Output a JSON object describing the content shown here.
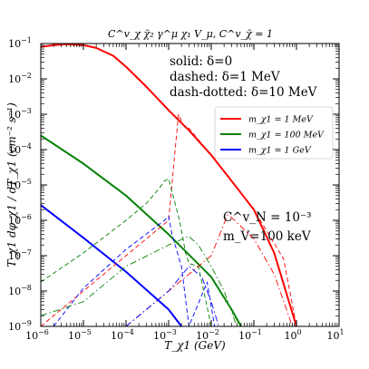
{
  "chart_data": {
    "type": "line",
    "title": "C^v_χ χ̄₂ γ^μ χ₁ V_μ,  C^v_χ̄ = 1",
    "xlabel": "T_χ1 (GeV)",
    "ylabel": "T_χ1 dφ_χ1 / dT_χ1 (cm⁻² s⁻¹)",
    "x_scale": "log",
    "y_scale": "log",
    "xlim": [
      1e-06,
      10
    ],
    "ylim": [
      1e-09,
      0.1
    ],
    "x_ticks": [
      {
        "b": "10",
        "e": "−6"
      },
      {
        "b": "10",
        "e": "−5"
      },
      {
        "b": "10",
        "e": "−4"
      },
      {
        "b": "10",
        "e": "−3"
      },
      {
        "b": "10",
        "e": "−2"
      },
      {
        "b": "10",
        "e": "−1"
      },
      {
        "b": "10",
        "e": "0"
      },
      {
        "b": "10",
        "e": "1"
      }
    ],
    "y_ticks": [
      {
        "b": "10",
        "e": "−9"
      },
      {
        "b": "10",
        "e": "−8"
      },
      {
        "b": "10",
        "e": "−7"
      },
      {
        "b": "10",
        "e": "−6"
      },
      {
        "b": "10",
        "e": "−5"
      },
      {
        "b": "10",
        "e": "−4"
      },
      {
        "b": "10",
        "e": "−3"
      },
      {
        "b": "10",
        "e": "−2"
      },
      {
        "b": "10",
        "e": "−1"
      }
    ],
    "annotations": {
      "style_key": [
        "solid: δ=0",
        "dashed: δ=1 MeV",
        "dash-dotted: δ=10 MeV"
      ],
      "params": [
        "C^v_N = 10⁻³",
        "m_V=100 keV"
      ]
    },
    "legend": {
      "placement": "center-right",
      "entries": [
        {
          "label": "m_χ1 = 1  MeV",
          "color": "#ff0000"
        },
        {
          "label": "m_χ1 = 100  MeV",
          "color": "#008000"
        },
        {
          "label": "m_χ1 = 1  GeV",
          "color": "#0000ff"
        }
      ]
    },
    "series": [
      {
        "mass": "1 MeV",
        "delta": "0",
        "color": "#ff0000",
        "style": "solid",
        "x": [
          1e-06,
          2e-06,
          4e-06,
          1e-05,
          2e-05,
          5e-05,
          0.0001,
          0.0003,
          0.001,
          0.003,
          0.01,
          0.03,
          0.1,
          0.3,
          1.0
        ],
        "y": [
          0.08,
          0.09,
          0.095,
          0.09,
          0.075,
          0.045,
          0.022,
          0.006,
          0.0013,
          0.00035,
          7e-05,
          1.3e-05,
          2e-06,
          1.2e-07,
          1e-09
        ]
      },
      {
        "mass": "100 MeV",
        "delta": "0",
        "color": "#008000",
        "style": "solid",
        "x": [
          1e-06,
          1e-05,
          0.0001,
          0.001,
          0.01,
          0.03,
          0.05
        ],
        "y": [
          0.00025,
          4e-05,
          5e-06,
          4e-07,
          2.5e-08,
          3e-09,
          1e-09
        ]
      },
      {
        "mass": "1 GeV",
        "delta": "0",
        "color": "#0000ff",
        "style": "solid",
        "x": [
          1e-06,
          1e-05,
          0.0001,
          0.001,
          0.002
        ],
        "y": [
          2.7e-06,
          3.2e-07,
          3.5e-08,
          3e-09,
          1e-09
        ]
      },
      {
        "mass": "1 MeV",
        "delta": "1 MeV",
        "color": "#ff0000",
        "style": "dashed",
        "x": [
          1e-06,
          1e-05,
          0.0001,
          0.001,
          0.0017,
          0.0022,
          0.003,
          0.01,
          0.1,
          0.5,
          1.0
        ],
        "y": [
          1e-09,
          1e-08,
          1e-07,
          1e-06,
          0.001,
          0.0005,
          0.0004,
          7e-05,
          2e-06,
          8e-08,
          1e-09
        ]
      },
      {
        "mass": "100 MeV",
        "delta": "1 MeV",
        "color": "#008000",
        "style": "dashed",
        "x": [
          1e-06,
          1e-05,
          0.0001,
          0.0003,
          0.0006,
          0.0008,
          0.001,
          0.0018,
          0.0025,
          0.003,
          0.005,
          0.01
        ],
        "y": [
          1.8e-08,
          1.2e-07,
          1e-06,
          3e-06,
          8e-06,
          1.3e-05,
          1.5e-05,
          1e-06,
          1.2e-07,
          6e-08,
          5e-08,
          1e-09
        ]
      },
      {
        "mass": "1 GeV",
        "delta": "1 MeV",
        "color": "#0000ff",
        "style": "dashed",
        "x": [
          2e-06,
          1e-05,
          0.0001,
          0.0008,
          0.001,
          0.0012,
          0.002,
          0.003,
          0.008,
          0.012
        ],
        "y": [
          1e-09,
          1.2e-08,
          1.5e-07,
          1e-06,
          1.3e-06,
          4e-07,
          5e-08,
          1e-09,
          1.8e-08,
          1e-09
        ]
      },
      {
        "mass": "1 MeV",
        "delta": "10 MeV",
        "color": "#ff0000",
        "style": "dash-dot",
        "x": [
          0.0001,
          0.001,
          0.01,
          0.024,
          0.03,
          0.1,
          0.3,
          0.8
        ],
        "y": [
          1e-09,
          1e-08,
          1e-07,
          1.4e-06,
          1.2e-06,
          3e-07,
          3e-08,
          1e-09
        ]
      },
      {
        "mass": "100 MeV",
        "delta": "10 MeV",
        "color": "#008000",
        "style": "dash-dot",
        "x": [
          1e-06,
          1e-05,
          0.0001,
          0.001,
          0.003,
          0.005,
          0.01,
          0.02,
          0.04
        ],
        "y": [
          2e-09,
          5e-09,
          5e-08,
          2e-07,
          3.5e-07,
          2e-07,
          5e-08,
          1e-08,
          1e-09
        ]
      },
      {
        "mass": "1 GeV",
        "delta": "10 MeV",
        "color": "#0000ff",
        "style": "dash-dot",
        "x": [
          0.0001,
          0.001,
          0.003,
          0.006,
          0.01,
          0.015
        ],
        "y": [
          1e-09,
          1e-08,
          5e-08,
          2.5e-08,
          5e-09,
          1e-09
        ]
      }
    ]
  }
}
